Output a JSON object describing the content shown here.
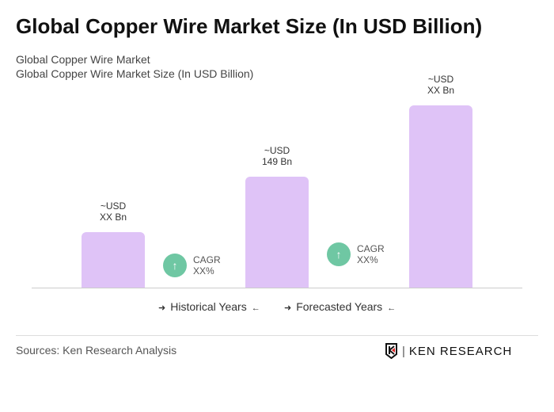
{
  "title": "Global Copper Wire Market Size (In USD Billion)",
  "subtitle1": "Global Copper Wire Market",
  "subtitle2": "Global Copper Wire Market Size (In USD Billion)",
  "chart_data": {
    "type": "bar",
    "categories": [
      "",
      "",
      ""
    ],
    "values": [
      "XX",
      149,
      "XX"
    ],
    "data_labels": [
      {
        "l1": "~USD",
        "l2": "XX Bn"
      },
      {
        "l1": "~USD",
        "l2": "149 Bn"
      },
      {
        "l1": "~USD",
        "l2": "XX Bn"
      }
    ],
    "bar_color": "#dfc3f7",
    "cagr": [
      {
        "label": "CAGR",
        "value": "XX%"
      },
      {
        "label": "CAGR",
        "value": "XX%"
      }
    ],
    "legend": {
      "historical": "Historical Years",
      "forecasted": "Forecasted Years"
    }
  },
  "cagr_color": "#6fc7a3",
  "sources": "Sources: Ken Research Analysis",
  "logo_text": "KEN RESEARCH"
}
